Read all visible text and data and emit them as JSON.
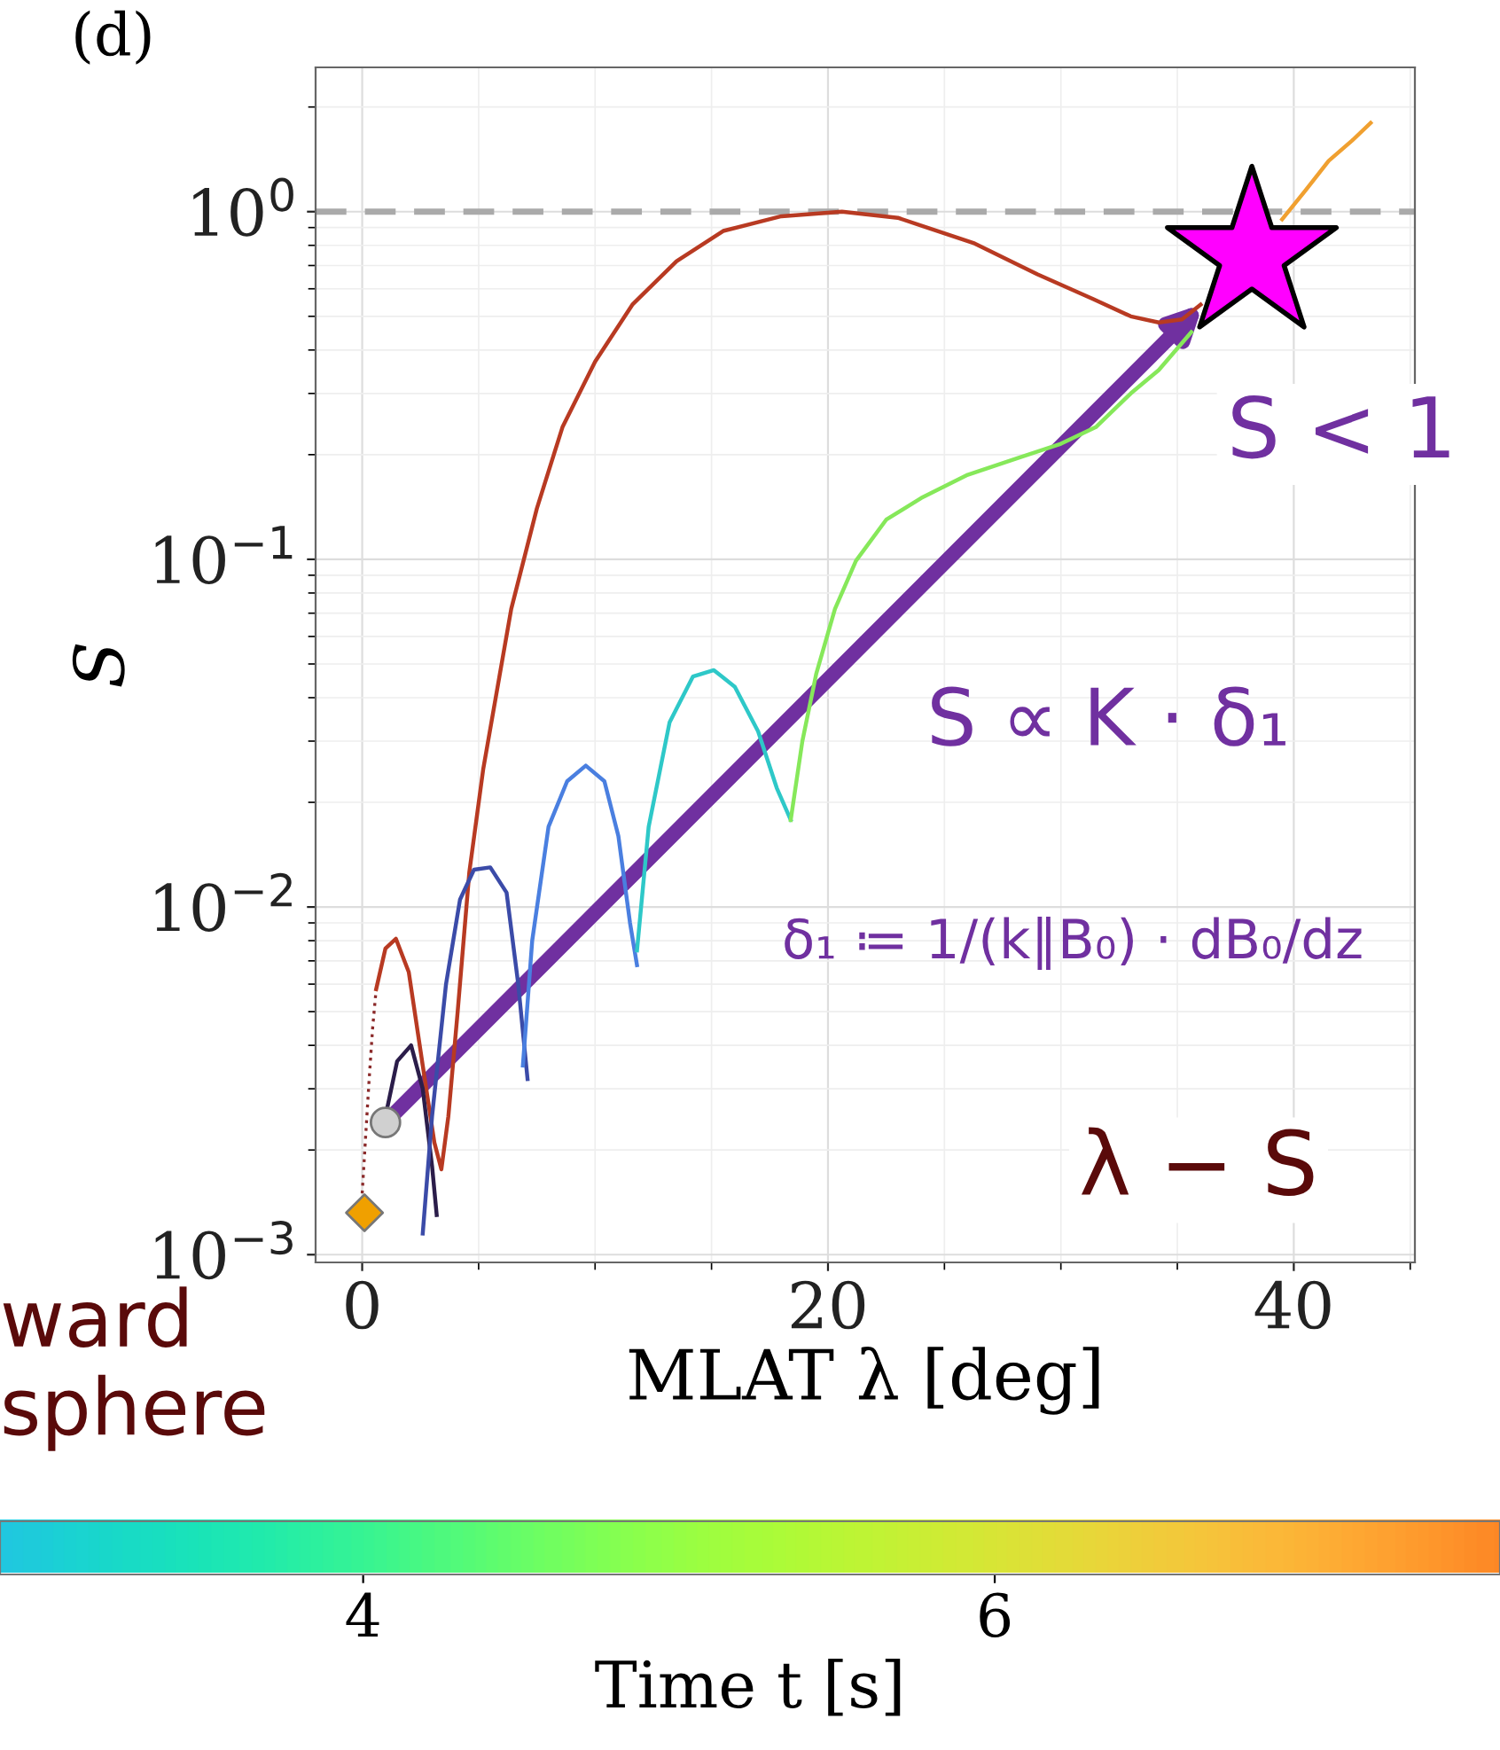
{
  "chart_data": {
    "type": "line",
    "title": "(d)",
    "xlabel": "MLAT λ [deg]",
    "ylabel": "S",
    "clabel": "Time t [s]",
    "clim": [
      2.85,
      7.6
    ],
    "cticks": [
      4,
      6
    ],
    "xlim": [
      -2,
      45.2
    ],
    "xticks": [
      0,
      20,
      40
    ],
    "ylim": [
      0.00095,
      2.6
    ],
    "log": "y",
    "yticks": [
      {
        "value": 0.001,
        "label": "10$^{−3}$"
      },
      {
        "value": 0.01,
        "label": "10$^{−2}$"
      },
      {
        "value": 0.1,
        "label": "10$^{−1}$"
      },
      {
        "value": 1,
        "label": "10$^{0}$"
      }
    ],
    "grid": true,
    "ref_lines": [
      {
        "axis": "y",
        "value": 1,
        "color": "#aaaaaa",
        "line_style": "dashed"
      }
    ],
    "annotations": [
      "S < 1",
      "S ∝ K · δ₁",
      "δ₁ ≔ 1/(k∥B₀) · dB₀/dz",
      "λ − S",
      "ward\nsphere"
    ],
    "series": [
      {
        "color": "#8b2a2a",
        "line_style": "dotted",
        "x": [
          0.0,
          0.15,
          0.3,
          0.45,
          0.6
        ],
        "values": [
          0.0015,
          0.0022,
          0.0032,
          0.0045,
          0.0058
        ]
      },
      {
        "color": "#b83a22",
        "x": [
          0.6,
          1.0,
          1.45,
          2.0,
          2.6,
          3.1,
          3.4,
          3.7,
          4.1,
          4.6,
          5.2,
          6.4,
          7.5,
          8.6,
          10,
          11.6,
          13.5,
          15.5,
          18,
          20.6,
          23,
          26.3,
          29,
          31.4,
          33,
          34.2,
          35.2,
          36
        ],
        "values": [
          0.0058,
          0.0076,
          0.0081,
          0.0065,
          0.0035,
          0.0021,
          0.00176,
          0.0025,
          0.005,
          0.0126,
          0.025,
          0.072,
          0.14,
          0.24,
          0.37,
          0.54,
          0.72,
          0.88,
          0.97,
          1.0,
          0.96,
          0.81,
          0.66,
          0.56,
          0.5,
          0.48,
          0.49,
          0.54
        ]
      },
      {
        "color": "#2b1d4a",
        "x": [
          1.0,
          1.5,
          2.1,
          2.6,
          3.0,
          3.2
        ],
        "values": [
          0.0025,
          0.0036,
          0.004,
          0.003,
          0.0018,
          0.0013
        ]
      },
      {
        "color": "#3b4ba8",
        "x": [
          2.6,
          3.0,
          3.6,
          4.2,
          4.8,
          5.5,
          6.2,
          6.7,
          7.1
        ],
        "values": [
          0.00115,
          0.0025,
          0.006,
          0.0105,
          0.0128,
          0.013,
          0.011,
          0.006,
          0.0032
        ]
      },
      {
        "color": "#4a7fe0",
        "x": [
          6.9,
          7.3,
          8.0,
          8.8,
          9.6,
          10.4,
          11.0,
          11.5,
          11.8
        ],
        "values": [
          0.0035,
          0.008,
          0.017,
          0.023,
          0.0255,
          0.023,
          0.016,
          0.009,
          0.0068
        ]
      },
      {
        "color": "#2ec8c8",
        "x": [
          11.8,
          12.3,
          13.2,
          14.2,
          15.1,
          16.0,
          17.0,
          17.8,
          18.4
        ],
        "values": [
          0.0075,
          0.017,
          0.034,
          0.046,
          0.048,
          0.043,
          0.032,
          0.022,
          0.0178
        ]
      },
      {
        "color": "#86e85a",
        "x": [
          18.4,
          18.9,
          19.5,
          20.3,
          21.2,
          22.5,
          24,
          26,
          28.1,
          30,
          31.5,
          33,
          34.2,
          35.6
        ],
        "values": [
          0.0178,
          0.03,
          0.047,
          0.072,
          0.099,
          0.13,
          0.15,
          0.175,
          0.195,
          0.215,
          0.24,
          0.3,
          0.35,
          0.45
        ]
      },
      {
        "color": "#f0a030",
        "x": [
          39.5,
          40.5,
          41.5,
          42.5,
          43.3
        ],
        "values": [
          0.95,
          1.15,
          1.4,
          1.6,
          1.8
        ]
      },
      {
        "type": "scatter",
        "marker": "diamond",
        "color": "#f0a000",
        "x": [
          0.1
        ],
        "values": [
          0.00132
        ]
      },
      {
        "type": "scatter",
        "marker": "circle",
        "color": "#d0d0d0",
        "x": [
          1.0
        ],
        "values": [
          0.0024
        ]
      },
      {
        "type": "scatter",
        "marker": "star",
        "color": "#ff00ff",
        "x": [
          38.2
        ],
        "values": [
          0.75
        ]
      }
    ]
  }
}
